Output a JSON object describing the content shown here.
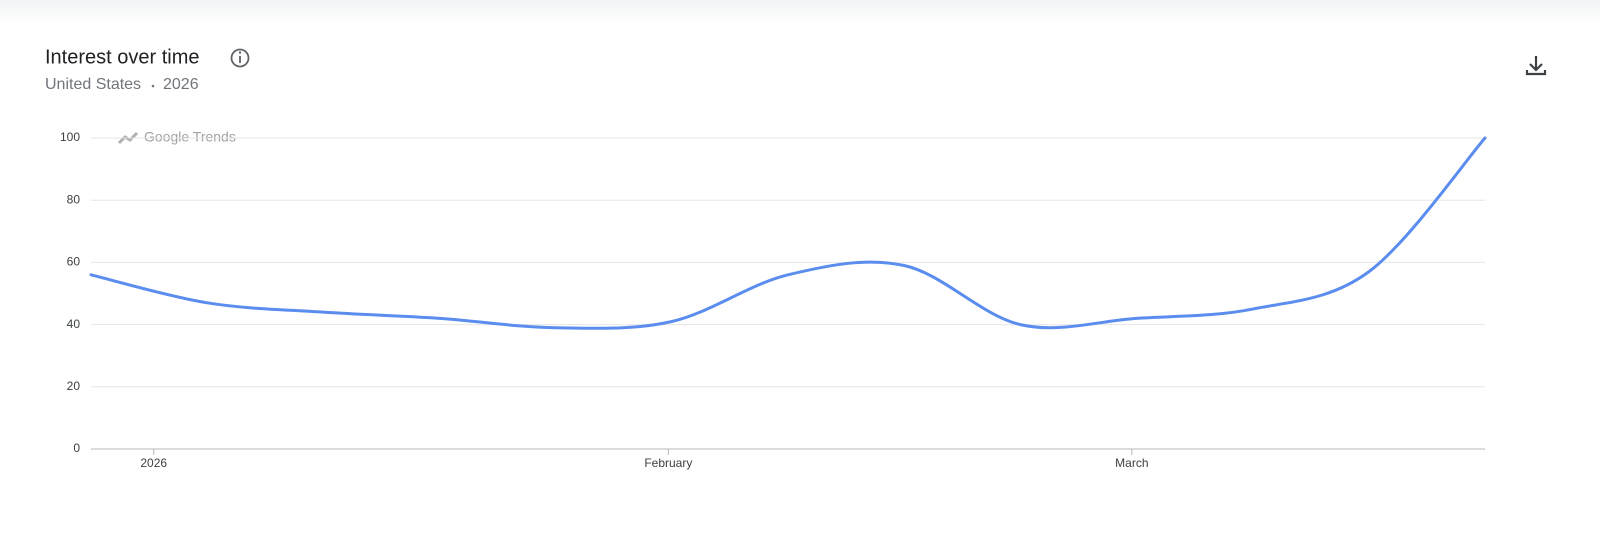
{
  "chart_data": {
    "type": "line",
    "title": "Interest over time",
    "subtitle": [
      "United States",
      "2026"
    ],
    "watermark": "Google Trends",
    "x": [
      0,
      1,
      2,
      3,
      4,
      5,
      6,
      7,
      8,
      9,
      10,
      11,
      12
    ],
    "values": [
      56,
      47,
      44,
      42,
      39,
      41,
      56,
      59,
      40,
      42,
      45,
      57,
      100
    ],
    "color": "#5b8def",
    "xlim": [
      0,
      12
    ],
    "xticks": [
      {
        "value": 0.54,
        "label": "2026"
      },
      {
        "value": 4.97,
        "label": "February"
      },
      {
        "value": 8.96,
        "label": "March"
      }
    ],
    "ylim": [
      0,
      100
    ],
    "yticks": [
      0,
      20,
      40,
      60,
      80,
      100
    ],
    "grid": true
  }
}
